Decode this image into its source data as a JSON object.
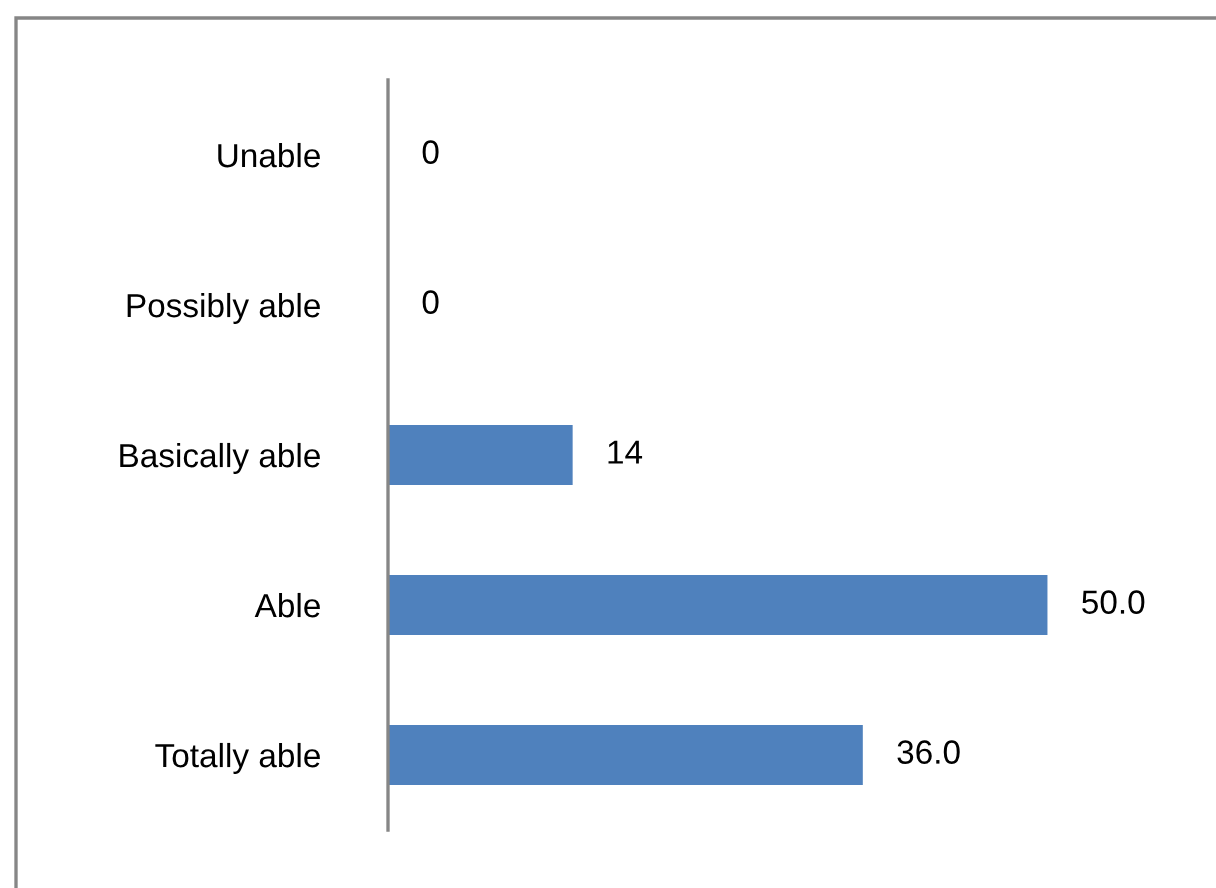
{
  "chart_data": {
    "type": "bar",
    "orientation": "horizontal",
    "categories": [
      "Unable",
      "Possibly able",
      "Basically able",
      "Able",
      "Totally able"
    ],
    "values": [
      0,
      0,
      14,
      50.0,
      36.0
    ],
    "color": "#4f81bd",
    "value_labels": [
      "0",
      "0",
      "14",
      "50.0",
      "36.0"
    ],
    "tick_labels": "y"
  }
}
